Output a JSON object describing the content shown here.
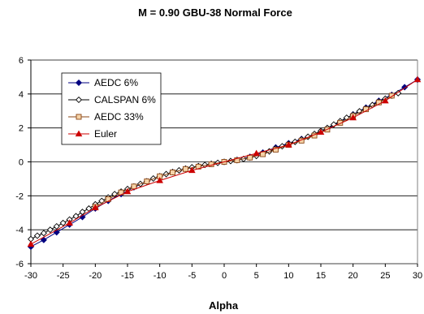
{
  "chart_data": {
    "type": "line",
    "title": "M = 0.90  GBU-38 Normal Force",
    "xlabel": "Alpha",
    "ylabel": "",
    "xlim": [
      -30,
      30
    ],
    "ylim": [
      -6,
      6
    ],
    "xticks": [
      -30,
      -25,
      -20,
      -15,
      -10,
      -5,
      0,
      5,
      10,
      15,
      20,
      25,
      30
    ],
    "yticks": [
      -6,
      -4,
      -2,
      0,
      2,
      4,
      6
    ],
    "grid": "horizontal",
    "legend_position": "top-left",
    "series": [
      {
        "name": "AEDC 6%",
        "color": "#000080",
        "marker": "diamond-filled",
        "x": [
          -30,
          -28,
          -26,
          -24,
          -22,
          -20,
          -18,
          -16,
          -14,
          -12,
          -10,
          -8,
          -6,
          -4,
          -2,
          0,
          2,
          4,
          6,
          8,
          10,
          12,
          14,
          16,
          18,
          20,
          22,
          24,
          26,
          28,
          30
        ],
        "y": [
          -5.0,
          -4.6,
          -4.15,
          -3.7,
          -3.25,
          -2.75,
          -2.3,
          -1.9,
          -1.5,
          -1.15,
          -0.85,
          -0.6,
          -0.4,
          -0.25,
          -0.12,
          0.0,
          0.12,
          0.3,
          0.55,
          0.85,
          1.1,
          1.35,
          1.6,
          1.95,
          2.35,
          2.8,
          3.2,
          3.6,
          3.95,
          4.4,
          4.85
        ]
      },
      {
        "name": "CALSPAN 6%",
        "color": "#000000",
        "marker": "diamond-open",
        "x": [
          -30,
          -29,
          -28,
          -27,
          -26,
          -25,
          -24,
          -23,
          -22,
          -21,
          -20,
          -19,
          -18,
          -17,
          -16,
          -15,
          -14,
          -13,
          -12,
          -11,
          -10,
          -9,
          -8,
          -7,
          -6,
          -5,
          -4,
          -3,
          -2,
          -1,
          0,
          1,
          2,
          3,
          4,
          5,
          6,
          7,
          8,
          9,
          10,
          11,
          12,
          13,
          14,
          15,
          16,
          17,
          18,
          19,
          20,
          21,
          22,
          23,
          24,
          25,
          26,
          27
        ],
        "y": [
          -4.55,
          -4.35,
          -4.2,
          -4.0,
          -3.8,
          -3.6,
          -3.4,
          -3.2,
          -2.95,
          -2.75,
          -2.5,
          -2.3,
          -2.1,
          -1.9,
          -1.75,
          -1.6,
          -1.45,
          -1.3,
          -1.15,
          -0.98,
          -0.85,
          -0.72,
          -0.6,
          -0.5,
          -0.4,
          -0.32,
          -0.25,
          -0.18,
          -0.12,
          -0.06,
          0.0,
          0.05,
          0.1,
          0.17,
          0.25,
          0.35,
          0.48,
          0.62,
          0.78,
          0.92,
          1.05,
          1.18,
          1.32,
          1.48,
          1.65,
          1.82,
          2.0,
          2.2,
          2.4,
          2.6,
          2.78,
          2.98,
          3.15,
          3.35,
          3.55,
          3.72,
          3.9,
          4.05
        ]
      },
      {
        "name": "AEDC 33%",
        "color": "#8B4513",
        "fill": "#F5D3A8",
        "marker": "square",
        "x": [
          -20,
          -18,
          -16,
          -14,
          -12,
          -10,
          -8,
          -6,
          -4,
          -2,
          0,
          2,
          4,
          6,
          8,
          10,
          12,
          14,
          16,
          18,
          20,
          22,
          24,
          26
        ],
        "y": [
          -2.65,
          -2.2,
          -1.8,
          -1.45,
          -1.15,
          -0.85,
          -0.62,
          -0.42,
          -0.28,
          -0.14,
          0.0,
          0.1,
          0.25,
          0.45,
          0.72,
          1.0,
          1.25,
          1.55,
          1.9,
          2.3,
          2.7,
          3.1,
          3.5,
          3.9
        ]
      },
      {
        "name": "Euler",
        "color": "#CC0000",
        "marker": "triangle",
        "x": [
          -30,
          -24,
          -20,
          -15,
          -10,
          -5,
          5,
          10,
          15,
          20,
          25,
          30
        ],
        "y": [
          -4.85,
          -3.6,
          -2.7,
          -1.75,
          -1.1,
          -0.5,
          0.5,
          1.0,
          1.75,
          2.6,
          3.6,
          4.85
        ]
      }
    ]
  }
}
